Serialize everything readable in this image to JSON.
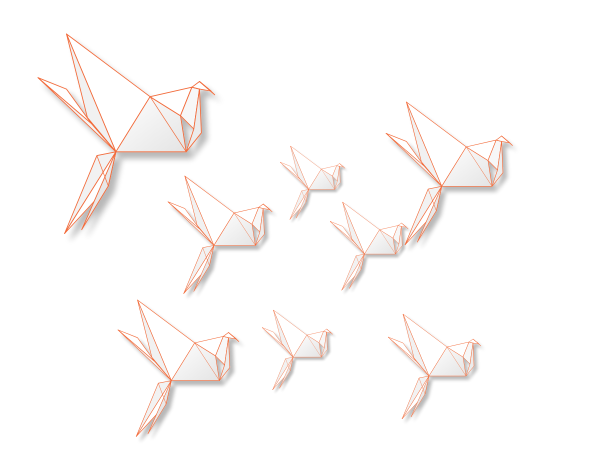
{
  "illustration": {
    "subject": "origami birds",
    "bird_count": 8
  },
  "colors": {
    "background": "#ffffff",
    "outline": "#f26b3a",
    "paper_light": "#ffffff",
    "paper_mid": "#f6f6f6",
    "paper_shade": "#e9e9e9",
    "shadow": "#bdbdbd"
  }
}
